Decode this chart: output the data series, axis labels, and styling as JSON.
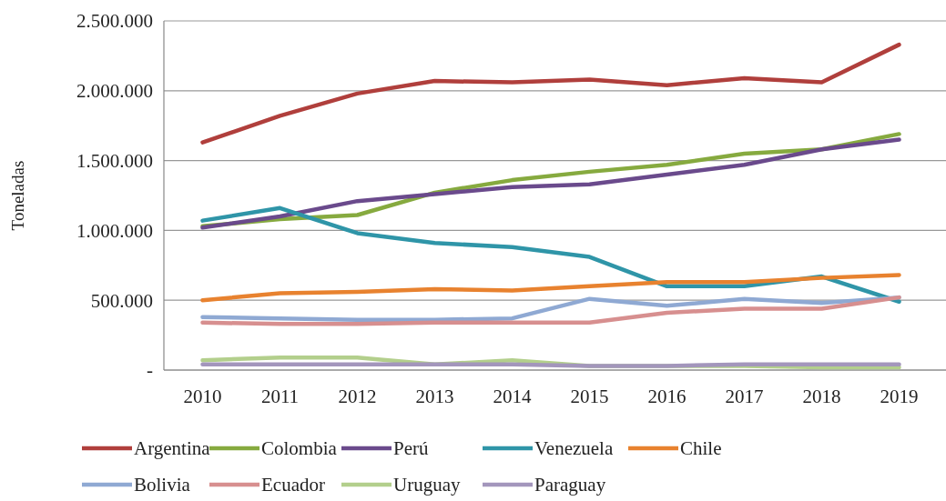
{
  "chart_data": {
    "type": "line",
    "ylabel": "Toneladas",
    "categories": [
      "2010",
      "2011",
      "2012",
      "2013",
      "2014",
      "2015",
      "2016",
      "2017",
      "2018",
      "2019"
    ],
    "ylim": [
      0,
      2500000
    ],
    "yticks": [
      {
        "value": 0,
        "label": "-"
      },
      {
        "value": 500000,
        "label": "500.000"
      },
      {
        "value": 1000000,
        "label": "1.000.000"
      },
      {
        "value": 1500000,
        "label": "1.500.000"
      },
      {
        "value": 2000000,
        "label": "2.000.000"
      },
      {
        "value": 2500000,
        "label": "2.500.000"
      }
    ],
    "grid": "y",
    "legend": "bottom",
    "marker": "none",
    "line_style": "solid",
    "series": [
      {
        "name": "Argentina",
        "color": "#b03f3c",
        "values": [
          1630000,
          1820000,
          1980000,
          2070000,
          2060000,
          2080000,
          2040000,
          2090000,
          2060000,
          2330000
        ]
      },
      {
        "name": "Colombia",
        "color": "#86aa3f",
        "values": [
          1030000,
          1080000,
          1110000,
          1270000,
          1360000,
          1420000,
          1470000,
          1550000,
          1580000,
          1690000
        ]
      },
      {
        "name": "Perú",
        "color": "#6a4a8c",
        "values": [
          1020000,
          1100000,
          1210000,
          1260000,
          1310000,
          1330000,
          1400000,
          1470000,
          1580000,
          1650000
        ]
      },
      {
        "name": "Venezuela",
        "color": "#2f95a8",
        "values": [
          1070000,
          1160000,
          980000,
          910000,
          880000,
          810000,
          600000,
          600000,
          670000,
          490000
        ]
      },
      {
        "name": "Chile",
        "color": "#e8822f",
        "values": [
          500000,
          550000,
          560000,
          580000,
          570000,
          600000,
          630000,
          630000,
          660000,
          680000
        ]
      },
      {
        "name": "Bolivia",
        "color": "#8fa9d3",
        "values": [
          380000,
          370000,
          360000,
          360000,
          370000,
          510000,
          460000,
          510000,
          480000,
          520000
        ]
      },
      {
        "name": "Ecuador",
        "color": "#d78f8f",
        "values": [
          340000,
          330000,
          330000,
          340000,
          340000,
          340000,
          410000,
          440000,
          440000,
          520000
        ]
      },
      {
        "name": "Uruguay",
        "color": "#b3cf8c",
        "values": [
          70000,
          90000,
          90000,
          40000,
          70000,
          30000,
          30000,
          30000,
          20000,
          20000
        ]
      },
      {
        "name": "Paraguay",
        "color": "#a396bc",
        "values": [
          40000,
          40000,
          40000,
          40000,
          40000,
          30000,
          30000,
          40000,
          40000,
          40000
        ]
      }
    ]
  }
}
